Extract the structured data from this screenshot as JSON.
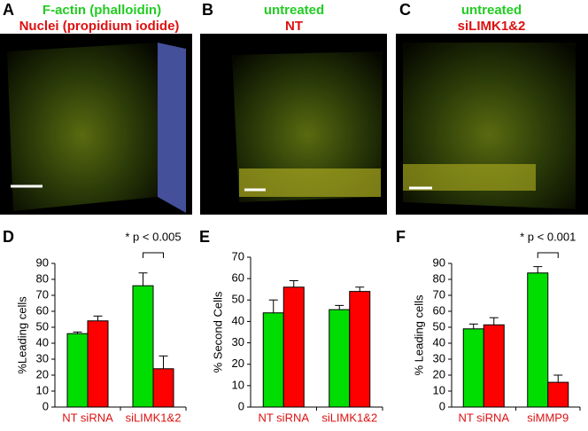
{
  "panels": [
    {
      "label": "A",
      "lines": [
        "F-actin (phalloidin)",
        "Nuclei (propidium iodide)"
      ]
    },
    {
      "label": "B",
      "lines": [
        "untreated",
        "NT"
      ]
    },
    {
      "label": "C",
      "lines": [
        "untreated",
        "siLIMK1&2"
      ]
    }
  ],
  "chart_data": [
    {
      "type": "bar",
      "label": "D",
      "ylabel": "%Leading cells",
      "categories": [
        "NT siRNA",
        "siLIMK1&2"
      ],
      "series": [
        {
          "color": "#00dd00",
          "values": [
            46,
            76
          ],
          "errors": [
            1,
            8
          ]
        },
        {
          "color": "#ff0000",
          "values": [
            54,
            24
          ],
          "errors": [
            3,
            8
          ]
        }
      ],
      "ylim": [
        0,
        90
      ],
      "yticks": [
        0,
        10,
        20,
        30,
        40,
        50,
        60,
        70,
        80,
        90
      ],
      "annotation": "* p < 0.005"
    },
    {
      "type": "bar",
      "label": "E",
      "ylabel": "% Second Cells",
      "categories": [
        "NT siRNA",
        "siLIMK1&2"
      ],
      "series": [
        {
          "color": "#00dd00",
          "values": [
            44,
            45.5
          ],
          "errors": [
            6,
            2
          ]
        },
        {
          "color": "#ff0000",
          "values": [
            56,
            54
          ],
          "errors": [
            3,
            2
          ]
        }
      ],
      "ylim": [
        0,
        70
      ],
      "yticks": [
        0,
        10,
        20,
        30,
        40,
        50,
        60,
        70
      ]
    },
    {
      "type": "bar",
      "label": "F",
      "ylabel": "% Leading cells",
      "categories": [
        "NT siRNA",
        "siMMP9"
      ],
      "series": [
        {
          "color": "#00dd00",
          "values": [
            49,
            84
          ],
          "errors": [
            3,
            4
          ]
        },
        {
          "color": "#ff0000",
          "values": [
            51.5,
            15.5
          ],
          "errors": [
            4.5,
            4.5
          ]
        }
      ],
      "ylim": [
        0,
        90
      ],
      "yticks": [
        0,
        10,
        20,
        30,
        40,
        50,
        60,
        70,
        80,
        90
      ],
      "annotation": "* p < 0.001"
    }
  ]
}
